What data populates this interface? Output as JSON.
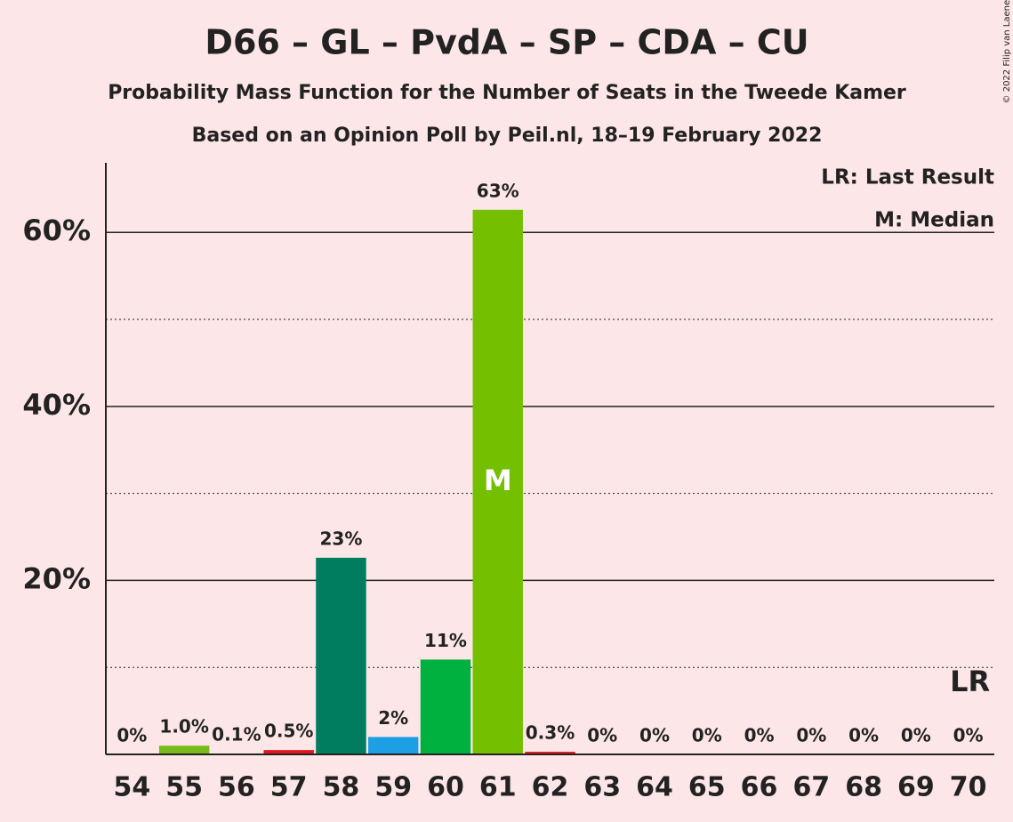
{
  "chart_data": {
    "type": "bar",
    "title": "D66 – GL – PvdA – SP – CDA – CU",
    "subtitle": "Probability Mass Function for the Number of Seats in the Tweede Kamer",
    "source_line": "Based on an Opinion Poll by Peil.nl, 18–19 February 2022",
    "copyright": "© 2022 Filip van Laenen",
    "categories": [
      "54",
      "55",
      "56",
      "57",
      "58",
      "59",
      "60",
      "61",
      "62",
      "63",
      "64",
      "65",
      "66",
      "67",
      "68",
      "69",
      "70"
    ],
    "values": [
      0,
      1.0,
      0.1,
      0.5,
      22.6,
      2.0,
      10.9,
      62.6,
      0.3,
      0,
      0,
      0,
      0,
      0,
      0,
      0,
      0
    ],
    "value_labels": [
      "0%",
      "1.0%",
      "0.1%",
      "0.5%",
      "23%",
      "2%",
      "11%",
      "63%",
      "0.3%",
      "0%",
      "0%",
      "0%",
      "0%",
      "0%",
      "0%",
      "0%",
      "0%"
    ],
    "colors": [
      "#78bc1b",
      "#78bc1b",
      "#e3161a",
      "#e3161a",
      "#007c5e",
      "#1e9fe3",
      "#00b140",
      "#73bf00",
      "#e3161a",
      "#73bf00",
      "#73bf00",
      "#73bf00",
      "#73bf00",
      "#73bf00",
      "#73bf00",
      "#73bf00",
      "#73bf00"
    ],
    "ylim": [
      0,
      68
    ],
    "yticks": [
      {
        "value": 20,
        "label": "20%"
      },
      {
        "value": 40,
        "label": "40%"
      },
      {
        "value": 60,
        "label": "60%"
      }
    ],
    "minor_grid": [
      10,
      30,
      50
    ],
    "grid": true,
    "median": "61",
    "median_label": "M",
    "last_result": "70",
    "last_result_label": "LR",
    "legend": [
      "LR: Last Result",
      "M: Median"
    ]
  }
}
